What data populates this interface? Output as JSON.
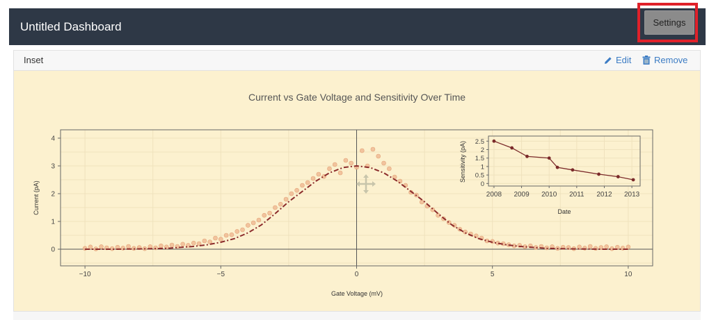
{
  "header": {
    "title": "Untitled Dashboard",
    "settings_label": "Settings"
  },
  "panel": {
    "title": "Inset",
    "edit_label": "Edit",
    "remove_label": "Remove"
  },
  "colors": {
    "navbar": "#2e3846",
    "plot_bg": "#fcf1cf",
    "scatter": "#f0bb94",
    "fit_line": "#8b2b2b",
    "link": "#3c7cc4",
    "highlight": "#e0212a"
  },
  "chart_data": [
    {
      "type": "scatter",
      "title": "Current vs Gate Voltage and Sensitivity Over Time",
      "xlabel": "Gate Voltage (mV)",
      "ylabel": "Current  (pA)",
      "xlim": [
        -10.9,
        10.9
      ],
      "ylim": [
        -0.6,
        4.3
      ],
      "xticks": [
        -10,
        -5,
        0,
        5,
        10
      ],
      "yticks": [
        0,
        1,
        2,
        3,
        4
      ],
      "grid": true,
      "series": [
        {
          "kind": "points",
          "color": "#f0bb94",
          "x": [
            -10,
            -9.8,
            -9.6,
            -9.4,
            -9.2,
            -9,
            -8.8,
            -8.6,
            -8.4,
            -8.2,
            -8,
            -7.8,
            -7.6,
            -7.4,
            -7.2,
            -7,
            -6.8,
            -6.6,
            -6.4,
            -6.2,
            -6,
            -5.8,
            -5.6,
            -5.4,
            -5.2,
            -5,
            -4.8,
            -4.6,
            -4.4,
            -4.2,
            -4,
            -3.8,
            -3.6,
            -3.4,
            -3.2,
            -3,
            -2.8,
            -2.6,
            -2.4,
            -2.2,
            -2,
            -1.8,
            -1.6,
            -1.4,
            -1.2,
            -1,
            -0.8,
            -0.6,
            -0.4,
            -0.2,
            0,
            0.2,
            0.4,
            0.6,
            0.8,
            1,
            1.2,
            1.4,
            1.6,
            1.8,
            2,
            2.2,
            2.4,
            2.6,
            2.8,
            3,
            3.2,
            3.4,
            3.6,
            3.8,
            4,
            4.2,
            4.4,
            4.6,
            4.8,
            5,
            5.2,
            5.4,
            5.6,
            5.8,
            6,
            6.2,
            6.4,
            6.6,
            6.8,
            7,
            7.2,
            7.4,
            7.6,
            7.8,
            8,
            8.2,
            8.4,
            8.6,
            8.8,
            9,
            9.2,
            9.4,
            9.6,
            9.8,
            10
          ],
          "y": [
            0.03,
            0.08,
            0.01,
            0.09,
            0.05,
            0.02,
            0.07,
            0.04,
            0.1,
            0.03,
            0.06,
            0.02,
            0.09,
            0.05,
            0.12,
            0.08,
            0.15,
            0.1,
            0.18,
            0.14,
            0.22,
            0.2,
            0.3,
            0.26,
            0.4,
            0.36,
            0.5,
            0.52,
            0.64,
            0.7,
            0.86,
            0.95,
            1.05,
            1.22,
            1.3,
            1.5,
            1.62,
            1.8,
            2.0,
            2.12,
            2.3,
            2.4,
            2.55,
            2.7,
            2.62,
            2.9,
            3.05,
            2.75,
            3.2,
            3.1,
            2.95,
            3.55,
            3.0,
            3.6,
            3.35,
            3.1,
            2.9,
            2.6,
            2.45,
            2.3,
            2.05,
            1.95,
            1.7,
            1.55,
            1.42,
            1.22,
            1.1,
            0.96,
            0.86,
            0.72,
            0.62,
            0.55,
            0.48,
            0.4,
            0.3,
            0.28,
            0.22,
            0.2,
            0.16,
            0.12,
            0.14,
            0.09,
            0.12,
            0.06,
            0.1,
            0.05,
            0.09,
            0.03,
            0.07,
            0.06,
            0.02,
            0.08,
            0.04,
            0.1,
            0.03,
            0.06,
            0.09,
            0.02,
            0.07,
            0.04,
            0.08
          ]
        },
        {
          "kind": "line",
          "style": "dash-dot",
          "color": "#8b2b2b",
          "x": [
            -10,
            -9,
            -8,
            -7,
            -6,
            -5.5,
            -5,
            -4.5,
            -4,
            -3.5,
            -3,
            -2.5,
            -2,
            -1.5,
            -1,
            -0.5,
            0,
            0.5,
            1,
            1.5,
            2,
            2.5,
            3,
            3.5,
            4,
            4.5,
            5,
            5.5,
            6,
            7,
            8,
            9,
            10
          ],
          "y": [
            0,
            0,
            0.01,
            0.03,
            0.1,
            0.16,
            0.25,
            0.38,
            0.59,
            0.88,
            1.28,
            1.71,
            2.08,
            2.45,
            2.75,
            2.94,
            3.0,
            2.94,
            2.75,
            2.45,
            2.08,
            1.71,
            1.28,
            0.88,
            0.59,
            0.38,
            0.25,
            0.16,
            0.1,
            0.03,
            0.01,
            0,
            0
          ]
        }
      ]
    },
    {
      "type": "line",
      "title": "",
      "xlabel": "Date",
      "ylabel": "Sensitivity (pA)",
      "xlim": [
        2007.8,
        2013.3
      ],
      "ylim": [
        -0.15,
        2.8
      ],
      "xticks": [
        2008,
        2009,
        2010,
        2011,
        2012,
        2013
      ],
      "yticks": [
        0,
        0.5,
        1,
        1.5,
        2,
        2.5
      ],
      "ytick_labels": [
        "0",
        "0.5",
        "1",
        "1.5",
        "2",
        "2.5"
      ],
      "grid": true,
      "series": [
        {
          "color": "#7b2a2a",
          "x": [
            2008,
            2008.65,
            2009.2,
            2010.0,
            2010.3,
            2010.85,
            2011.8,
            2012.5,
            2013.05
          ],
          "y": [
            2.5,
            2.1,
            1.6,
            1.5,
            0.95,
            0.8,
            0.55,
            0.4,
            0.22
          ]
        }
      ]
    }
  ]
}
